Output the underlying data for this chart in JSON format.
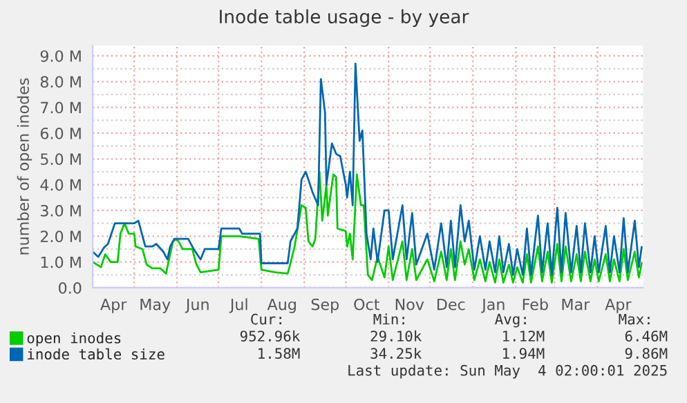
{
  "chart_data": {
    "type": "line",
    "title": "Inode table usage - by year",
    "ylabel": "number of open inodes",
    "xlim": [
      "2024-04-01",
      "2025-05-04"
    ],
    "ylim": [
      0,
      9.4
    ],
    "xticks": [
      {
        "value": "2024-04-16",
        "label": "Apr"
      },
      {
        "value": "2024-05-01",
        "label": null
      },
      {
        "value": "2024-05-16",
        "label": "May"
      },
      {
        "value": "2024-06-01",
        "label": null
      },
      {
        "value": "2024-06-16",
        "label": "Jun"
      },
      {
        "value": "2024-07-01",
        "label": null
      },
      {
        "value": "2024-07-16",
        "label": "Jul"
      },
      {
        "value": "2024-08-01",
        "label": null
      },
      {
        "value": "2024-08-16",
        "label": "Aug"
      },
      {
        "value": "2024-09-01",
        "label": null
      },
      {
        "value": "2024-09-16",
        "label": "Sep"
      },
      {
        "value": "2024-10-01",
        "label": null
      },
      {
        "value": "2024-10-16",
        "label": "Oct"
      },
      {
        "value": "2024-11-01",
        "label": null
      },
      {
        "value": "2024-11-16",
        "label": "Nov"
      },
      {
        "value": "2024-12-01",
        "label": null
      },
      {
        "value": "2024-12-16",
        "label": "Dec"
      },
      {
        "value": "2025-01-01",
        "label": null
      },
      {
        "value": "2025-01-16",
        "label": "Jan"
      },
      {
        "value": "2025-02-01",
        "label": null
      },
      {
        "value": "2025-02-15",
        "label": "Feb"
      },
      {
        "value": "2025-03-01",
        "label": null
      },
      {
        "value": "2025-03-16",
        "label": "Mar"
      },
      {
        "value": "2025-04-01",
        "label": null
      },
      {
        "value": "2025-04-16",
        "label": "Apr"
      }
    ],
    "yticks": [
      {
        "value": 0,
        "label": "0.0"
      },
      {
        "value": 0.5,
        "label": null
      },
      {
        "value": 1,
        "label": "1.0 M"
      },
      {
        "value": 1.5,
        "label": null
      },
      {
        "value": 2,
        "label": "2.0 M"
      },
      {
        "value": 2.5,
        "label": null
      },
      {
        "value": 3,
        "label": "3.0 M"
      },
      {
        "value": 3.5,
        "label": null
      },
      {
        "value": 4,
        "label": "4.0 M"
      },
      {
        "value": 4.5,
        "label": null
      },
      {
        "value": 5,
        "label": "5.0 M"
      },
      {
        "value": 5.5,
        "label": null
      },
      {
        "value": 6,
        "label": "6.0 M"
      },
      {
        "value": 6.5,
        "label": null
      },
      {
        "value": 7,
        "label": "7.0 M"
      },
      {
        "value": 7.5,
        "label": null
      },
      {
        "value": 8,
        "label": "8.0 M"
      },
      {
        "value": 8.5,
        "label": null
      },
      {
        "value": 9,
        "label": "9.0 M"
      }
    ],
    "grid": true,
    "legend": "bottom",
    "line_style": "solid",
    "series": [
      {
        "name": "open inodes",
        "color": "#00cc00",
        "x": [
          "2024-04-01",
          "2024-04-07",
          "2024-04-10",
          "2024-04-14",
          "2024-04-19",
          "2024-04-21",
          "2024-04-24",
          "2024-04-27",
          "2024-05-01",
          "2024-05-02",
          "2024-05-07",
          "2024-05-10",
          "2024-05-14",
          "2024-05-20",
          "2024-05-24",
          "2024-05-29",
          "2024-06-01",
          "2024-06-05",
          "2024-06-12",
          "2024-06-15",
          "2024-06-18",
          "2024-07-01",
          "2024-07-03",
          "2024-07-16",
          "2024-07-30",
          "2024-08-01",
          "2024-08-11",
          "2024-08-20",
          "2024-08-22",
          "2024-08-25",
          "2024-08-30",
          "2024-09-02",
          "2024-09-04",
          "2024-09-07",
          "2024-09-09",
          "2024-09-12",
          "2024-09-14",
          "2024-09-17",
          "2024-09-18",
          "2024-09-22",
          "2024-09-24",
          "2024-09-25",
          "2024-10-01",
          "2024-10-02",
          "2024-10-04",
          "2024-10-06",
          "2024-10-09",
          "2024-10-12",
          "2024-10-14",
          "2024-10-17",
          "2024-10-20",
          "2024-10-24",
          "2024-10-29",
          "2024-11-01",
          "2024-11-04",
          "2024-11-11",
          "2024-11-14",
          "2024-11-18",
          "2024-11-21",
          "2024-11-29",
          "2024-12-04",
          "2024-12-09",
          "2024-12-13",
          "2024-12-16",
          "2024-12-19",
          "2024-12-23",
          "2024-12-26",
          "2024-12-29",
          "2025-01-02",
          "2025-01-06",
          "2025-01-10",
          "2025-01-13",
          "2025-01-17",
          "2025-01-20",
          "2025-01-23",
          "2025-01-27",
          "2025-01-30",
          "2025-02-02",
          "2025-02-06",
          "2025-02-09",
          "2025-02-12",
          "2025-02-17",
          "2025-02-20",
          "2025-02-24",
          "2025-02-27",
          "2025-03-03",
          "2025-03-06",
          "2025-03-09",
          "2025-03-13",
          "2025-03-17",
          "2025-03-20",
          "2025-03-23",
          "2025-03-27",
          "2025-03-30",
          "2025-04-02",
          "2025-04-07",
          "2025-04-10",
          "2025-04-13",
          "2025-04-17",
          "2025-04-20",
          "2025-04-23",
          "2025-04-28",
          "2025-05-01",
          "2025-05-03"
        ],
        "values": [
          1.0,
          0.8,
          1.3,
          1.0,
          1.0,
          2.1,
          2.5,
          2.1,
          2.1,
          1.6,
          1.5,
          0.9,
          0.75,
          0.75,
          0.55,
          1.8,
          1.9,
          1.5,
          1.5,
          0.9,
          0.6,
          0.7,
          2.0,
          2.0,
          1.9,
          0.7,
          0.6,
          0.55,
          0.95,
          1.6,
          3.2,
          3.1,
          1.8,
          1.6,
          1.9,
          4.5,
          2.6,
          4.0,
          2.8,
          4.4,
          4.3,
          2.3,
          2.2,
          1.6,
          2.1,
          1.1,
          4.4,
          3.2,
          3.2,
          0.5,
          0.3,
          1.2,
          0.4,
          1.6,
          0.3,
          1.8,
          0.3,
          1.5,
          0.3,
          1.1,
          0.25,
          1.4,
          0.3,
          1.5,
          0.3,
          1.8,
          0.9,
          1.5,
          0.3,
          1.1,
          0.25,
          1.0,
          0.2,
          1.1,
          0.2,
          0.9,
          0.2,
          0.8,
          0.2,
          1.3,
          0.2,
          1.6,
          0.25,
          1.4,
          0.2,
          1.7,
          0.25,
          1.6,
          0.25,
          1.3,
          0.25,
          1.4,
          0.25,
          1.1,
          0.25,
          1.3,
          0.25,
          1.1,
          0.25,
          1.5,
          0.3,
          1.4,
          0.4,
          0.95
        ]
      },
      {
        "name": "inode table size",
        "color": "#0066b3",
        "x": [
          "2024-04-01",
          "2024-04-05",
          "2024-04-09",
          "2024-04-12",
          "2024-04-17",
          "2024-04-22",
          "2024-04-27",
          "2024-05-01",
          "2024-05-04",
          "2024-05-09",
          "2024-05-14",
          "2024-05-17",
          "2024-05-22",
          "2024-05-25",
          "2024-05-27",
          "2024-05-30",
          "2024-06-09",
          "2024-06-13",
          "2024-06-18",
          "2024-06-21",
          "2024-07-01",
          "2024-07-03",
          "2024-07-16",
          "2024-07-18",
          "2024-07-31",
          "2024-08-01",
          "2024-08-20",
          "2024-08-22",
          "2024-08-27",
          "2024-08-30",
          "2024-09-02",
          "2024-09-04",
          "2024-09-07",
          "2024-09-11",
          "2024-09-13",
          "2024-09-16",
          "2024-09-17",
          "2024-09-21",
          "2024-09-24",
          "2024-09-27",
          "2024-10-01",
          "2024-10-02",
          "2024-10-04",
          "2024-10-06",
          "2024-10-08",
          "2024-10-11",
          "2024-10-13",
          "2024-10-16",
          "2024-10-19",
          "2024-10-21",
          "2024-10-24",
          "2024-10-29",
          "2024-11-01",
          "2024-11-04",
          "2024-11-11",
          "2024-11-14",
          "2024-11-18",
          "2024-11-21",
          "2024-11-29",
          "2024-12-04",
          "2024-12-09",
          "2024-12-13",
          "2024-12-16",
          "2024-12-19",
          "2024-12-23",
          "2024-12-26",
          "2024-12-29",
          "2025-01-02",
          "2025-01-06",
          "2025-01-10",
          "2025-01-13",
          "2025-01-17",
          "2025-01-20",
          "2025-01-23",
          "2025-01-27",
          "2025-01-30",
          "2025-02-02",
          "2025-02-06",
          "2025-02-09",
          "2025-02-12",
          "2025-02-17",
          "2025-02-20",
          "2025-02-24",
          "2025-02-27",
          "2025-03-03",
          "2025-03-06",
          "2025-03-09",
          "2025-03-13",
          "2025-03-17",
          "2025-03-20",
          "2025-03-23",
          "2025-03-27",
          "2025-03-30",
          "2025-04-02",
          "2025-04-07",
          "2025-04-10",
          "2025-04-13",
          "2025-04-17",
          "2025-04-20",
          "2025-04-23",
          "2025-04-28",
          "2025-05-01",
          "2025-05-03"
        ],
        "values": [
          1.4,
          1.2,
          1.55,
          1.7,
          2.5,
          2.5,
          2.5,
          2.5,
          2.6,
          1.6,
          1.6,
          1.7,
          1.4,
          1.1,
          1.6,
          1.9,
          1.9,
          1.5,
          1.1,
          1.5,
          1.5,
          2.3,
          2.3,
          2.1,
          2.1,
          0.95,
          0.95,
          1.8,
          2.3,
          4.2,
          4.5,
          4.2,
          3.7,
          3.2,
          8.1,
          6.8,
          4.0,
          5.6,
          5.2,
          5.1,
          4.0,
          3.5,
          4.5,
          3.2,
          8.7,
          5.7,
          6.1,
          2.1,
          1.1,
          2.3,
          1.0,
          3.0,
          3.0,
          1.1,
          3.2,
          1.1,
          2.9,
          0.9,
          2.1,
          0.7,
          2.5,
          0.8,
          2.6,
          0.8,
          3.2,
          1.8,
          2.6,
          0.7,
          2.0,
          0.7,
          1.8,
          0.6,
          2.0,
          0.6,
          1.7,
          0.5,
          1.5,
          0.5,
          2.3,
          0.5,
          2.8,
          0.6,
          2.5,
          0.5,
          3.1,
          0.6,
          2.9,
          0.6,
          2.4,
          0.6,
          2.5,
          0.6,
          2.0,
          0.6,
          2.4,
          0.6,
          2.0,
          0.6,
          2.7,
          0.6,
          2.6,
          0.8,
          1.58
        ]
      }
    ],
    "annotations": [
      "Cur:",
      "Min:",
      "Avg:",
      "Max:",
      "952.96k",
      "29.10k",
      "1.12M",
      "6.46M",
      "1.58M",
      "34.25k",
      "1.94M",
      "9.86M",
      "Last update: Sun May  4 02:00:01 2025"
    ]
  }
}
